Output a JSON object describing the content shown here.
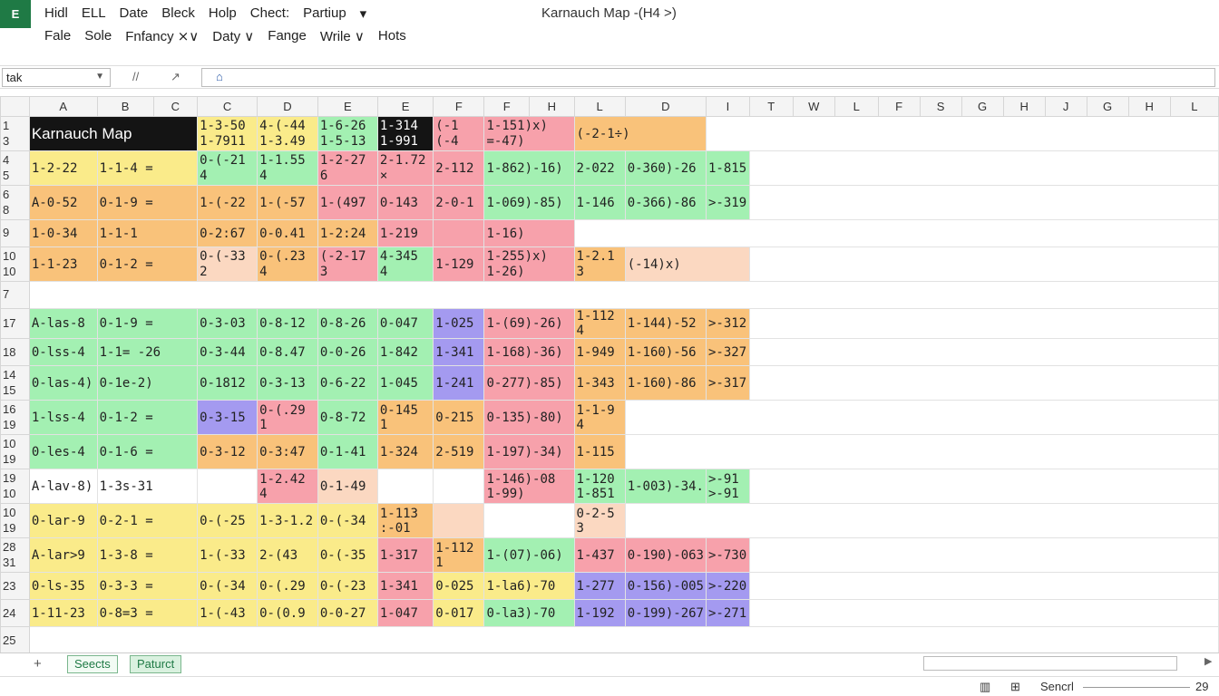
{
  "app": {
    "icon": "excel-app-icon",
    "icon_glyph": "E",
    "title": "Karnauch Map -(H4 >)"
  },
  "menu": {
    "row1": [
      {
        "name": "menu-hidl",
        "label": "Hidl"
      },
      {
        "name": "menu-ell",
        "label": "ELL"
      },
      {
        "name": "menu-date",
        "label": "Date"
      },
      {
        "name": "menu-bleck",
        "label": "Bleck"
      },
      {
        "name": "menu-holp",
        "label": "Holp"
      },
      {
        "name": "menu-chect",
        "label": "Chect:"
      },
      {
        "name": "menu-partiup",
        "label": "Partiup"
      },
      {
        "name": "menu-chevron",
        "label": "▾"
      }
    ],
    "row2": [
      {
        "name": "menu-fale",
        "label": "Fale"
      },
      {
        "name": "menu-sole",
        "label": "Sole"
      },
      {
        "name": "menu-fnfancy",
        "label": "Fnfancy ⨯∨"
      },
      {
        "name": "menu-daty",
        "label": "Daty ∨"
      },
      {
        "name": "menu-fange",
        "label": "Fange"
      },
      {
        "name": "menu-wrile",
        "label": "Wrile ∨"
      },
      {
        "name": "menu-hots",
        "label": "Hots"
      }
    ]
  },
  "formula_bar": {
    "name_box": "tak",
    "icons": [
      "//",
      "↗",
      "⌂"
    ]
  },
  "columns": [
    "A",
    "B",
    "C",
    "C",
    "D",
    "E",
    "E",
    "F",
    "F",
    "H",
    "L",
    "D",
    "I",
    "T",
    "W",
    "L",
    "F",
    "S",
    "G",
    "H",
    "J",
    "G",
    "H",
    "L"
  ],
  "rows": [
    {
      "h": "1\n3",
      "cells": [
        [
          "Karnauch Map",
          "k",
          3
        ],
        [
          "1-3-50\n1-7911",
          "y"
        ],
        [
          "4-(-44\n1-3.49",
          "y"
        ],
        [
          "1-6-26\n1-5-13",
          "g"
        ],
        [
          "1-314\n1-991",
          "k"
        ],
        [
          "(-1\n(-4",
          "p"
        ],
        [
          "1-151)x)\n=-47)",
          "p",
          2
        ],
        [
          "(-2-1÷)",
          "o",
          2
        ],
        [
          "",
          "w",
          14
        ]
      ]
    },
    {
      "h": "4\n5",
      "cells": [
        [
          "1-2-22",
          "y"
        ],
        [
          "1-1-4 =",
          "y",
          2
        ],
        [
          "0-(-21\n4",
          "g"
        ],
        [
          "1-1.55\n4",
          "g"
        ],
        [
          "1-2-27\n6",
          "p"
        ],
        [
          "2-1.72\n×",
          "p"
        ],
        [
          "2-112",
          "p"
        ],
        [
          "1-862)-16)",
          "g",
          2
        ],
        [
          "2-022",
          "g"
        ],
        [
          "0-360)-26",
          "g"
        ],
        [
          "1-815",
          "g"
        ],
        [
          "",
          "w",
          12
        ]
      ]
    },
    {
      "h": "6\n8",
      "cells": [
        [
          "A-0-52",
          "o"
        ],
        [
          "0-1-9 =",
          "o",
          2
        ],
        [
          "1-(-22",
          "o"
        ],
        [
          "1-(-57",
          "o"
        ],
        [
          "1-(497",
          "p"
        ],
        [
          "0-143",
          "p"
        ],
        [
          "2-0-1",
          "p"
        ],
        [
          "1-069)-85)",
          "g",
          2
        ],
        [
          "1-146",
          "g"
        ],
        [
          "0-366)-86",
          "g"
        ],
        [
          ">-319",
          "g"
        ],
        [
          "",
          "w",
          12
        ]
      ]
    },
    {
      "h": "9",
      "cells": [
        [
          "1-0-34",
          "o"
        ],
        [
          "1-1-1",
          "o",
          2
        ],
        [
          "0-2:67",
          "o"
        ],
        [
          "0-0.41",
          "o"
        ],
        [
          "1-2:24",
          "o"
        ],
        [
          "1-219",
          "p"
        ],
        [
          "",
          "p"
        ],
        [
          "1-16)",
          "p",
          2
        ],
        [
          "",
          "w",
          17
        ]
      ]
    },
    {
      "h": "10\n10",
      "cells": [
        [
          "1-1-23",
          "o"
        ],
        [
          "0-1-2 =",
          "o",
          2
        ],
        [
          "0-(-33\n2",
          "s"
        ],
        [
          "0-(.23\n4",
          "o"
        ],
        [
          "(-2-17\n3",
          "p"
        ],
        [
          "4-345\n4",
          "g"
        ],
        [
          "1-129",
          "p"
        ],
        [
          "1-255)x)\n1-26)",
          "p",
          2
        ],
        [
          "1-2.1\n3",
          "o"
        ],
        [
          "(-14)x)",
          "s",
          2
        ],
        [
          "",
          "w",
          11
        ]
      ]
    },
    {
      "h": "7",
      "cells": [
        [
          "",
          "w",
          24
        ]
      ]
    },
    {
      "h": "17",
      "cells": [
        [
          "A-las-8",
          "g"
        ],
        [
          "0-1-9 =",
          "g",
          2
        ],
        [
          "0-3-03",
          "g"
        ],
        [
          "0-8-12",
          "g"
        ],
        [
          "0-8-26",
          "g"
        ],
        [
          "0-047",
          "g"
        ],
        [
          "1-025",
          "v"
        ],
        [
          "1-(69)-26)",
          "p",
          2
        ],
        [
          "1-112\n4",
          "o"
        ],
        [
          "1-144)-52",
          "o"
        ],
        [
          ">-312",
          "o"
        ],
        [
          "",
          "w",
          12
        ]
      ]
    },
    {
      "h": "18",
      "cells": [
        [
          "0-lss-4",
          "g"
        ],
        [
          "1-1= -26",
          "g",
          2
        ],
        [
          "0-3-44",
          "g"
        ],
        [
          "0-8.47",
          "g"
        ],
        [
          "0-0-26",
          "g"
        ],
        [
          "1-842",
          "g"
        ],
        [
          "1-341",
          "v"
        ],
        [
          "1-168)-36)",
          "p",
          2
        ],
        [
          "1-949",
          "o"
        ],
        [
          "1-160)-56",
          "o"
        ],
        [
          ">-327",
          "o"
        ],
        [
          "",
          "w",
          12
        ]
      ]
    },
    {
      "h": "14\n15",
      "cells": [
        [
          "0-las-4)",
          "g"
        ],
        [
          "0-1e-2)",
          "g",
          2
        ],
        [
          "0-1812",
          "g"
        ],
        [
          "0-3-13",
          "g"
        ],
        [
          "0-6-22",
          "g"
        ],
        [
          "1-045",
          "g"
        ],
        [
          "1-241",
          "v"
        ],
        [
          "0-277)-85)",
          "p",
          2
        ],
        [
          "1-343",
          "o"
        ],
        [
          "1-160)-86",
          "o"
        ],
        [
          ">-317",
          "o"
        ],
        [
          "",
          "w",
          12
        ]
      ]
    },
    {
      "h": "16\n19",
      "cells": [
        [
          "1-lss-4",
          "g"
        ],
        [
          "0-1-2 =",
          "g",
          2
        ],
        [
          "0-3-15",
          "v"
        ],
        [
          "0-(.29\n1",
          "p"
        ],
        [
          "0-8-72",
          "g"
        ],
        [
          "0-145\n1",
          "o"
        ],
        [
          "0-215",
          "o"
        ],
        [
          "0-135)-80)",
          "p",
          2
        ],
        [
          "1-1-9\n4",
          "o"
        ],
        [
          "",
          "w",
          14
        ]
      ]
    },
    {
      "h": "10\n19",
      "cells": [
        [
          "0-les-4",
          "g"
        ],
        [
          "0-1-6 =",
          "g",
          2
        ],
        [
          "0-3-12",
          "o"
        ],
        [
          "0-3:47",
          "o"
        ],
        [
          "0-1-41",
          "g"
        ],
        [
          "1-324",
          "o"
        ],
        [
          "2-519",
          "o"
        ],
        [
          "1-197)-34)",
          "p",
          2
        ],
        [
          "1-115",
          "o"
        ],
        [
          "",
          "w",
          14
        ]
      ]
    },
    {
      "h": "19\n10",
      "cells": [
        [
          "A-lav-8)",
          "w"
        ],
        [
          "1-3s-31",
          "w",
          2
        ],
        [
          "",
          "w"
        ],
        [
          "1-2.42\n4",
          "p"
        ],
        [
          "0-1-49",
          "s"
        ],
        [
          "",
          "w"
        ],
        [
          "",
          "w"
        ],
        [
          "1-146)-08\n1-99)",
          "p",
          2
        ],
        [
          "1-120\n1-851",
          "g"
        ],
        [
          "1-003)-34.",
          "g"
        ],
        [
          ">-91\n>-91",
          "g"
        ],
        [
          "",
          "w",
          12
        ]
      ]
    },
    {
      "h": "10\n19",
      "cells": [
        [
          "0-lar-9",
          "y"
        ],
        [
          "0-2-1 =",
          "y",
          2
        ],
        [
          "0-(-25",
          "y"
        ],
        [
          "1-3-1.2",
          "y"
        ],
        [
          "0-(-34",
          "y"
        ],
        [
          "1-113\n:-01",
          "o"
        ],
        [
          "",
          "s"
        ],
        [
          "",
          "w",
          2
        ],
        [
          "0-2-5\n3",
          "s"
        ],
        [
          "",
          "w",
          14
        ]
      ]
    },
    {
      "h": "28\n31",
      "cells": [
        [
          "A-lar>9",
          "y"
        ],
        [
          "1-3-8 =",
          "y",
          2
        ],
        [
          "1-(-33",
          "y"
        ],
        [
          "2-(43",
          "y"
        ],
        [
          "0-(-35",
          "y"
        ],
        [
          "1-317",
          "p"
        ],
        [
          "1-112\n1",
          "o"
        ],
        [
          "1-(07)-06)",
          "g",
          2
        ],
        [
          "1-437",
          "p"
        ],
        [
          "0-190)-063",
          "p"
        ],
        [
          ">-730",
          "p"
        ],
        [
          "",
          "w",
          12
        ]
      ]
    },
    {
      "h": "23",
      "cells": [
        [
          "0-ls-35",
          "y"
        ],
        [
          "0-3-3 =",
          "y",
          2
        ],
        [
          "0-(-34",
          "y"
        ],
        [
          "0-(.29",
          "y"
        ],
        [
          "0-(-23",
          "y"
        ],
        [
          "1-341",
          "p"
        ],
        [
          "0-025",
          "y"
        ],
        [
          "1-la6)-70",
          "y",
          2
        ],
        [
          "1-277",
          "v"
        ],
        [
          "0-156)-005",
          "v"
        ],
        [
          ">-220",
          "v"
        ],
        [
          "",
          "w",
          12
        ]
      ]
    },
    {
      "h": "24",
      "cells": [
        [
          "1-11-23",
          "y"
        ],
        [
          "0-8=3 =",
          "y",
          2
        ],
        [
          "1-(-43",
          "y"
        ],
        [
          "0-(0.9",
          "y"
        ],
        [
          "0-0-27",
          "y"
        ],
        [
          "1-047",
          "p"
        ],
        [
          "0-017",
          "y"
        ],
        [
          "0-la3)-70",
          "g",
          2
        ],
        [
          "1-192",
          "v"
        ],
        [
          "0-199)-267",
          "v"
        ],
        [
          ">-271",
          "v"
        ],
        [
          "",
          "w",
          12
        ]
      ]
    },
    {
      "h": "25",
      "cells": [
        [
          "",
          "w",
          24
        ]
      ]
    }
  ],
  "tabs": {
    "add": "+",
    "items": [
      "Seects",
      "Paturct"
    ]
  },
  "status": {
    "icons": [
      "▥",
      "⊞"
    ],
    "label": "Sencrl",
    "zoom": "29"
  }
}
